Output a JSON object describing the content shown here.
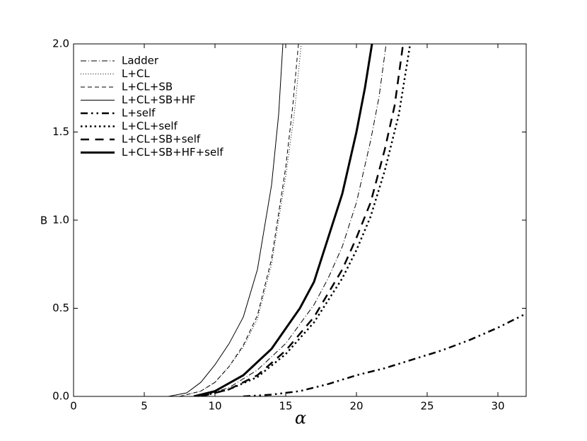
{
  "chart_data": {
    "type": "line",
    "x_label": "α",
    "y_label": "B",
    "xlim": [
      0,
      32
    ],
    "ylim": [
      0,
      2
    ],
    "xticks": [
      0,
      5,
      10,
      15,
      20,
      25,
      30
    ],
    "yticks": [
      {
        "value": 0,
        "label": "0.0"
      },
      {
        "value": 0.5,
        "label": "0.5"
      },
      {
        "value": 1,
        "label": "1.0"
      },
      {
        "value": 1.5,
        "label": "1.5"
      },
      {
        "value": 2,
        "label": "2.0"
      }
    ],
    "legend": "upper left",
    "series": [
      {
        "name": "Ladder",
        "color": "#000000",
        "dash": "dashdot",
        "linewidth": 1,
        "x": [
          9,
          11,
          13,
          15,
          17,
          18,
          19,
          20,
          21,
          21.6,
          22.1
        ],
        "values": [
          0,
          0.05,
          0.15,
          0.3,
          0.52,
          0.67,
          0.85,
          1.1,
          1.45,
          1.7,
          2.0
        ]
      },
      {
        "name": "L+CL",
        "color": "#000000",
        "dash": "dotted",
        "linewidth": 1,
        "x": [
          7.5,
          9,
          10,
          11,
          12,
          13,
          14,
          15,
          15.6,
          16.1
        ],
        "values": [
          0,
          0.03,
          0.08,
          0.17,
          0.28,
          0.44,
          0.75,
          1.25,
          1.6,
          2.0
        ]
      },
      {
        "name": "L+CL+SB",
        "color": "#000000",
        "dash": "dashed",
        "linewidth": 1,
        "x": [
          7.5,
          9,
          10,
          11,
          12,
          13,
          14,
          15,
          15.5,
          15.9
        ],
        "values": [
          0,
          0.03,
          0.08,
          0.17,
          0.29,
          0.46,
          0.78,
          1.3,
          1.65,
          2.0
        ]
      },
      {
        "name": "L+CL+SB+HF",
        "color": "#000000",
        "dash": "solid",
        "linewidth": 1,
        "x": [
          6.7,
          8,
          9,
          10,
          11,
          12,
          13,
          14,
          14.5,
          14.8
        ],
        "values": [
          0,
          0.02,
          0.08,
          0.18,
          0.3,
          0.45,
          0.72,
          1.2,
          1.6,
          2.0
        ]
      },
      {
        "name": "L+self",
        "color": "#000000",
        "dash": "dashdotdot",
        "linewidth": 2.5,
        "x": [
          12,
          14,
          16,
          18,
          20,
          22,
          24,
          26,
          28,
          30,
          32
        ],
        "values": [
          0,
          0.01,
          0.03,
          0.07,
          0.12,
          0.16,
          0.21,
          0.26,
          0.32,
          0.39,
          0.47
        ]
      },
      {
        "name": "L+CL+self",
        "color": "#000000",
        "dash": "dotted",
        "linewidth": 2.5,
        "x": [
          9,
          11,
          13,
          15,
          17,
          19,
          20,
          21,
          22,
          23,
          23.8
        ],
        "values": [
          0,
          0.04,
          0.11,
          0.24,
          0.42,
          0.67,
          0.83,
          1.02,
          1.28,
          1.6,
          2.0
        ]
      },
      {
        "name": "L+CL+SB+self",
        "color": "#000000",
        "dash": "dashed",
        "linewidth": 2.5,
        "x": [
          9,
          11,
          13,
          15,
          17,
          19,
          20,
          21,
          22,
          22.7,
          23.3
        ],
        "values": [
          0,
          0.04,
          0.12,
          0.26,
          0.45,
          0.72,
          0.9,
          1.1,
          1.4,
          1.65,
          2.0
        ]
      },
      {
        "name": "L+CL+SB+HF+self",
        "color": "#000000",
        "dash": "solid",
        "linewidth": 3,
        "x": [
          8.5,
          10,
          12,
          14,
          16,
          17,
          18,
          19,
          20,
          20.6,
          21.1
        ],
        "values": [
          0,
          0.03,
          0.12,
          0.27,
          0.5,
          0.65,
          0.9,
          1.15,
          1.5,
          1.75,
          2.0
        ]
      }
    ]
  }
}
